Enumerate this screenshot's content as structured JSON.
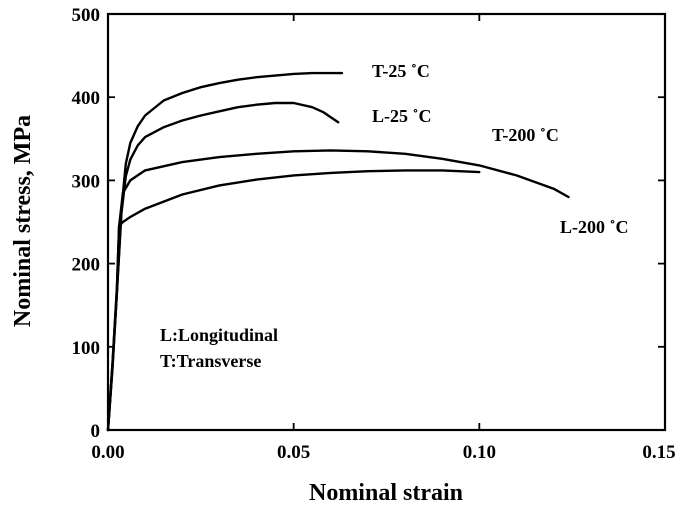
{
  "chart_data": {
    "type": "line",
    "xlabel": "Nominal strain",
    "ylabel": "Nominal stress, MPa",
    "xlim": [
      0,
      0.15
    ],
    "ylim": [
      0,
      500
    ],
    "x_ticks": [
      0,
      0.05,
      0.1,
      0.15
    ],
    "x_tick_labels": [
      "0.00",
      "0.05",
      "0.10",
      "0.15"
    ],
    "y_ticks": [
      0,
      100,
      200,
      300,
      400,
      500
    ],
    "y_tick_labels": [
      "0",
      "100",
      "200",
      "300",
      "400",
      "500"
    ],
    "grid": false,
    "legend": "none",
    "annotations": [
      "L:Longitudinal",
      "T:Transverse"
    ],
    "series": [
      {
        "name": "T-25 ˚C",
        "x": [
          0,
          0.0012,
          0.0024,
          0.0036,
          0.0048,
          0.006,
          0.008,
          0.01,
          0.015,
          0.02,
          0.025,
          0.03,
          0.035,
          0.04,
          0.045,
          0.05,
          0.055,
          0.06,
          0.063
        ],
        "y": [
          0,
          75,
          165,
          265,
          320,
          345,
          365,
          378,
          396,
          405,
          412,
          417,
          421,
          424,
          426,
          428,
          429,
          429,
          429
        ]
      },
      {
        "name": "L-25 ˚C",
        "x": [
          0,
          0.0012,
          0.0024,
          0.0036,
          0.0048,
          0.006,
          0.008,
          0.01,
          0.015,
          0.02,
          0.025,
          0.03,
          0.035,
          0.04,
          0.045,
          0.05,
          0.055,
          0.058,
          0.061,
          0.062
        ],
        "y": [
          0,
          75,
          165,
          260,
          305,
          325,
          342,
          352,
          364,
          372,
          378,
          383,
          388,
          391,
          393,
          393,
          388,
          382,
          373,
          370
        ]
      },
      {
        "name": "T-200 ˚C",
        "x": [
          0,
          0.0012,
          0.0024,
          0.003,
          0.004,
          0.006,
          0.01,
          0.02,
          0.03,
          0.04,
          0.05,
          0.06,
          0.07,
          0.08,
          0.09,
          0.1,
          0.11,
          0.12,
          0.124
        ],
        "y": [
          0,
          80,
          170,
          245,
          285,
          300,
          312,
          322,
          328,
          332,
          335,
          336,
          335,
          332,
          326,
          318,
          306,
          290,
          280
        ]
      },
      {
        "name": "L-200 ˚C",
        "x": [
          0,
          0.0012,
          0.0024,
          0.003,
          0.004,
          0.006,
          0.01,
          0.02,
          0.03,
          0.04,
          0.05,
          0.06,
          0.07,
          0.08,
          0.09,
          0.1
        ],
        "y": [
          0,
          80,
          170,
          245,
          250,
          256,
          266,
          283,
          294,
          301,
          306,
          309,
          311,
          312,
          312,
          310
        ]
      }
    ]
  }
}
